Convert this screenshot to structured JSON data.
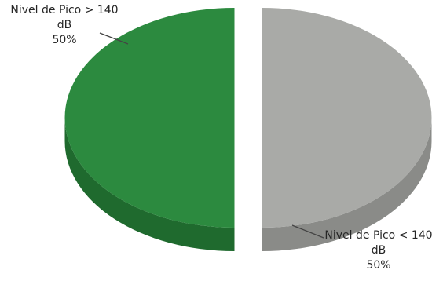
{
  "chart_data": {
    "type": "pie",
    "style": "3d-exploded",
    "title": "",
    "slices": [
      {
        "label_line1": "Nivel de Pico > 140",
        "label_line2": "dB",
        "percent_text": "50%",
        "value": 50,
        "top_color": "#2c8a3f",
        "side_color": "#1f6a2e"
      },
      {
        "label_line1": "Nivel de Pico < 140",
        "label_line2": "dB",
        "percent_text": "50%",
        "value": 50,
        "top_color": "#a9aaa7",
        "side_color": "#8a8b88"
      }
    ]
  }
}
